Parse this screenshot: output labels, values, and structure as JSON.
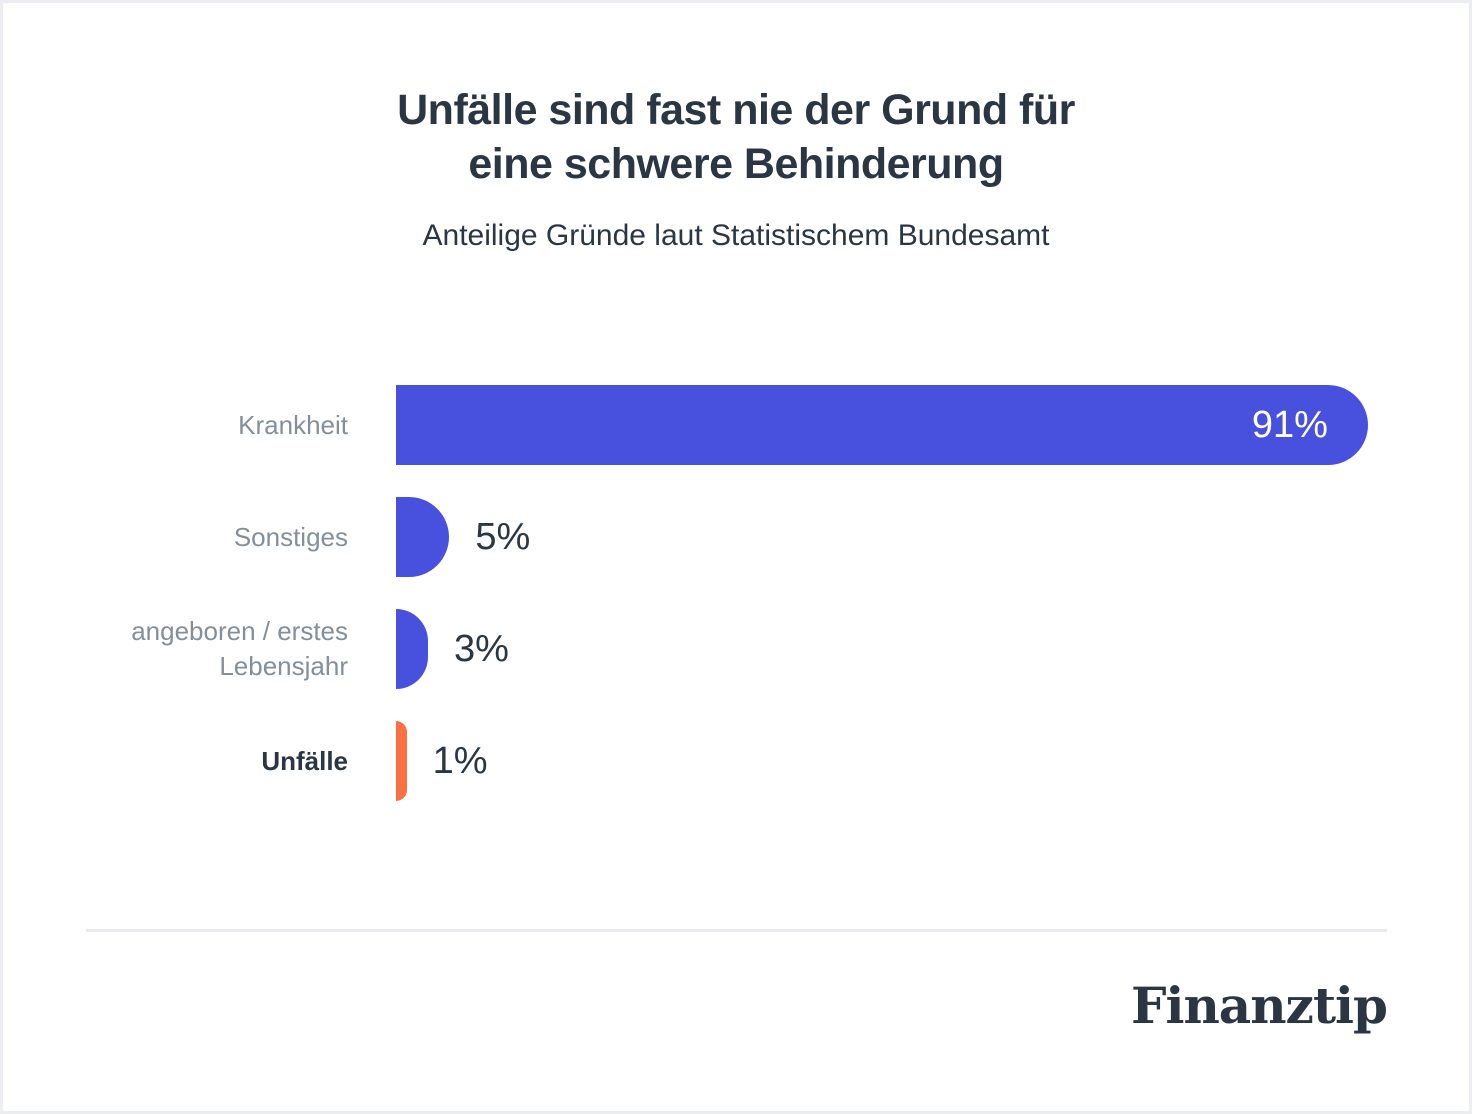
{
  "title": {
    "line1": "Unfälle sind fast nie der Grund für",
    "line2": "eine schwere Behinderung"
  },
  "subtitle": "Anteilige Gründe laut Statistischem Bundesamt",
  "chart_data": {
    "type": "bar",
    "orientation": "horizontal",
    "title": "Unfälle sind fast nie der Grund für eine schwere Behinderung",
    "subtitle": "Anteilige Gründe laut Statistischem Bundesamt",
    "categories": [
      "Krankheit",
      "Sonstiges",
      "angeboren / erstes Lebensjahr",
      "Unfälle"
    ],
    "values": [
      91,
      5,
      3,
      1
    ],
    "value_labels": [
      "91%",
      "5%",
      "3%",
      "1%"
    ],
    "xlim": [
      0,
      100
    ],
    "bar_colors": [
      "#4751DE",
      "#4751DE",
      "#4751DE",
      "#FB7043"
    ],
    "highlight_category": "Unfälle",
    "value_label_position": [
      "inside-end",
      "outside-end",
      "outside-end",
      "outside-end"
    ],
    "grid": false,
    "legend": false
  },
  "colors": {
    "bar_blue": "#4751DE",
    "bar_orange": "#FB7043",
    "text_dark": "#2A3644",
    "label_gray": "#838F9B",
    "divider": "#E9EAF1",
    "frame_border": "#ECEDF3"
  },
  "footer": {
    "brand": "Finanztip"
  }
}
